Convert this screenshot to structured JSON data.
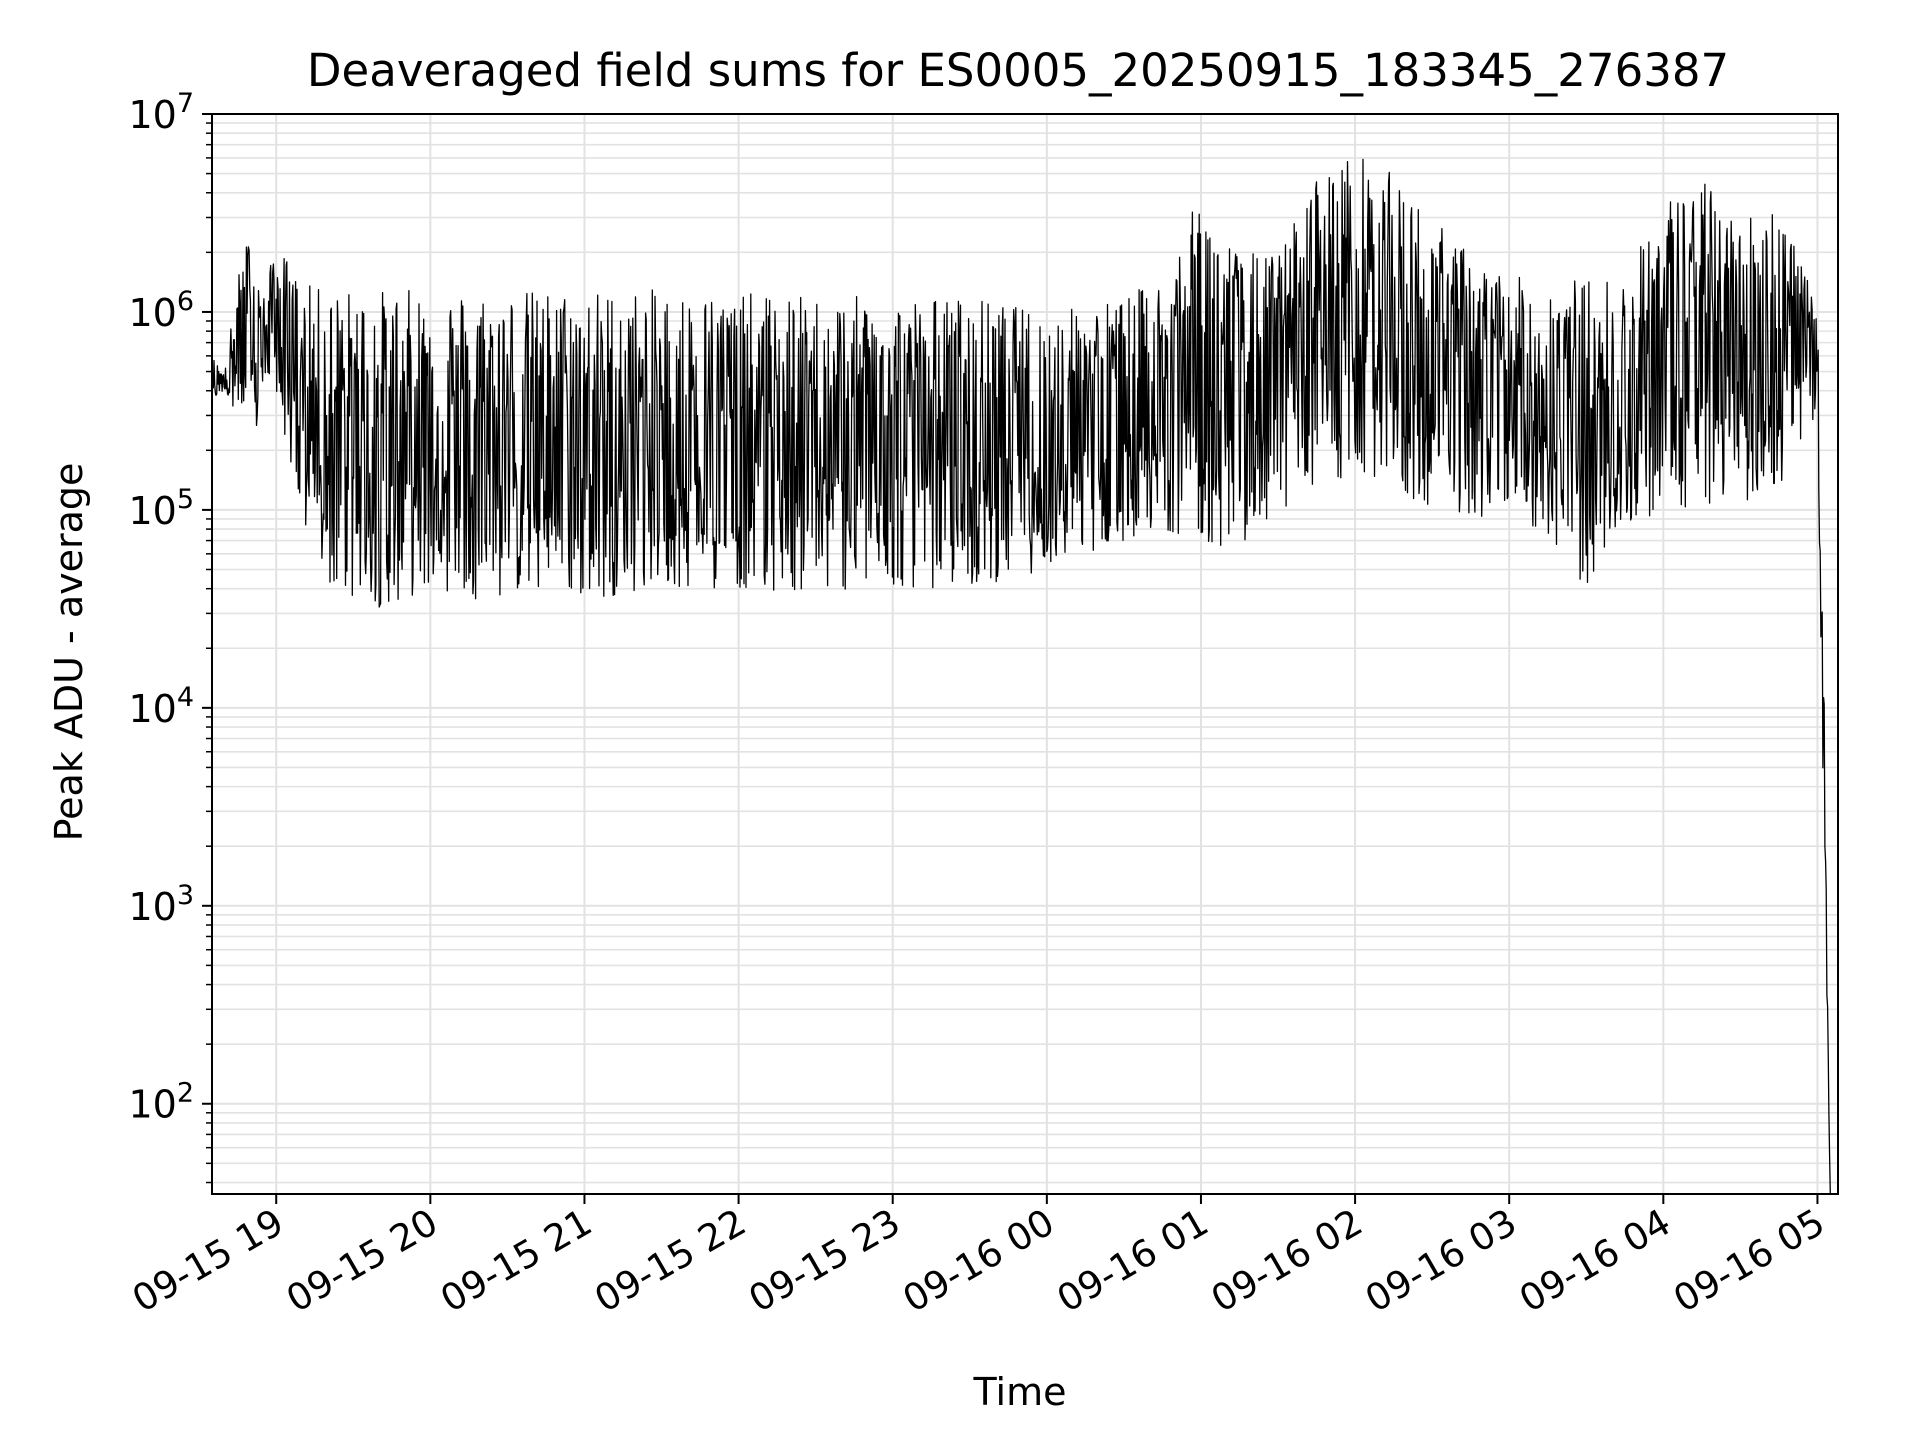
{
  "chart_data": {
    "type": "line",
    "title": "Deaveraged field sums for ES0005_20250915_183345_276387",
    "xlabel": "Time",
    "ylabel": "Peak ADU - average",
    "y_scale": "log",
    "ylim": [
      35,
      10000000
    ],
    "xlim": [
      "2025-09-15 18:35",
      "2025-09-16 05:08"
    ],
    "grid": true,
    "line_color": "#000000",
    "x_ticks": [
      "09-15 19",
      "09-15 20",
      "09-15 21",
      "09-15 22",
      "09-15 23",
      "09-16 00",
      "09-16 01",
      "09-16 02",
      "09-16 03",
      "09-16 04",
      "09-16 05"
    ],
    "x_tick_values": [
      "2025-09-15 19:00",
      "2025-09-15 20:00",
      "2025-09-15 21:00",
      "2025-09-15 22:00",
      "2025-09-15 23:00",
      "2025-09-16 00:00",
      "2025-09-16 01:00",
      "2025-09-16 02:00",
      "2025-09-16 03:00",
      "2025-09-16 04:00",
      "2025-09-16 05:00"
    ],
    "y_ticks": [
      {
        "base": "10",
        "exp": "2",
        "value": 100
      },
      {
        "base": "10",
        "exp": "3",
        "value": 1000
      },
      {
        "base": "10",
        "exp": "4",
        "value": 10000
      },
      {
        "base": "10",
        "exp": "5",
        "value": 100000
      },
      {
        "base": "10",
        "exp": "6",
        "value": 1000000
      },
      {
        "base": "10",
        "exp": "7",
        "value": 10000000
      }
    ],
    "series": [
      {
        "x": [
          "2025-09-15 18:35",
          "2025-09-15 18:40",
          "2025-09-15 18:45",
          "2025-09-15 18:50",
          "2025-09-15 18:55",
          "2025-09-15 19:00",
          "2025-09-15 19:10",
          "2025-09-15 19:20",
          "2025-09-15 19:30",
          "2025-09-15 19:40",
          "2025-09-15 19:50",
          "2025-09-15 20:00",
          "2025-09-15 20:20",
          "2025-09-15 20:40",
          "2025-09-15 21:00",
          "2025-09-15 21:30",
          "2025-09-15 22:00",
          "2025-09-15 22:30",
          "2025-09-15 23:00",
          "2025-09-15 23:30",
          "2025-09-16 00:00",
          "2025-09-16 00:30",
          "2025-09-16 00:45",
          "2025-09-16 01:00",
          "2025-09-16 01:15",
          "2025-09-16 01:30",
          "2025-09-16 01:45",
          "2025-09-16 02:00",
          "2025-09-16 02:15",
          "2025-09-16 02:30",
          "2025-09-16 02:45",
          "2025-09-16 03:00",
          "2025-09-16 03:15",
          "2025-09-16 03:30",
          "2025-09-16 03:45",
          "2025-09-16 04:00",
          "2025-09-16 04:15",
          "2025-09-16 04:30",
          "2025-09-16 04:45",
          "2025-09-16 04:55",
          "2025-09-16 05:00",
          "2025-09-16 05:02",
          "2025-09-16 05:05"
        ],
        "upper": [
          600000,
          500000,
          1500000,
          2800000,
          1200000,
          2300000,
          1400000,
          1300000,
          1300000,
          1300000,
          1300000,
          1300000,
          1300000,
          1300000,
          1300000,
          1300000,
          1250000,
          1200000,
          1200000,
          1200000,
          1000000,
          1200000,
          1500000,
          4000000,
          2000000,
          2000000,
          5000000,
          6500000,
          5000000,
          3000000,
          2000000,
          1500000,
          1500000,
          1500000,
          1500000,
          3800000,
          4700000,
          3000000,
          4000000,
          1600000,
          1000000,
          50000,
          35
        ],
        "lower": [
          350000,
          400000,
          300000,
          150000,
          400000,
          400000,
          80000,
          40000,
          35000,
          32000,
          35000,
          40000,
          35000,
          38000,
          35000,
          40000,
          40000,
          38000,
          40000,
          40000,
          50000,
          70000,
          80000,
          70000,
          60000,
          100000,
          120000,
          150000,
          120000,
          100000,
          90000,
          100000,
          70000,
          40000,
          80000,
          100000,
          100000,
          110000,
          120000,
          250000,
          200000,
          5000,
          35
        ]
      }
    ]
  }
}
